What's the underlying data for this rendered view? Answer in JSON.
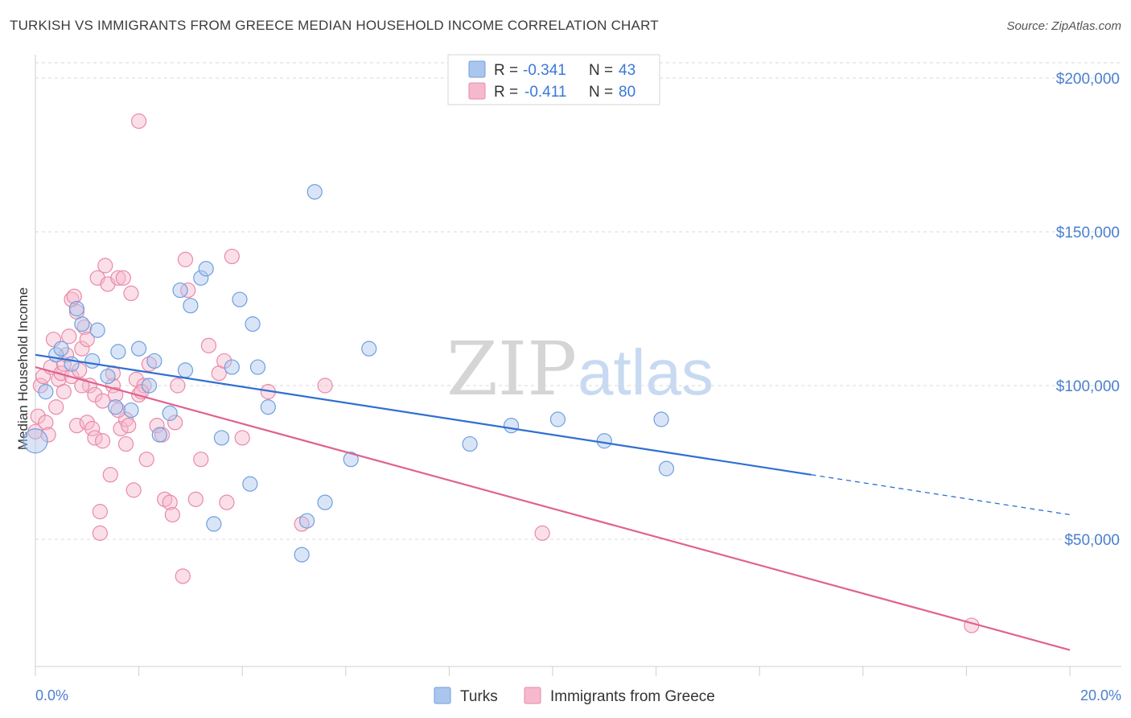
{
  "header": {
    "title": "TURKISH VS IMMIGRANTS FROM GREECE MEDIAN HOUSEHOLD INCOME CORRELATION CHART",
    "source": "Source: ZipAtlas.com"
  },
  "watermark": {
    "zip": "ZIP",
    "atlas": "atlas"
  },
  "colors": {
    "turks_fill": "#aac6ee",
    "turks_stroke": "#6f9fe0",
    "turks_line": "#2f6fd0",
    "greece_fill": "#f6b8cc",
    "greece_stroke": "#e98aa8",
    "greece_line": "#e0628f",
    "grid": "#d9d9d9",
    "tick_label": "#4a7fd0"
  },
  "legend": {
    "rows": [
      {
        "r_label": "R = ",
        "r_value": "-0.341",
        "n_label": "N = ",
        "n_value": "43"
      },
      {
        "r_label": "R = ",
        "r_value": "-0.411",
        "n_label": "N = ",
        "n_value": "80"
      }
    ]
  },
  "bottom_legend": [
    "Turks",
    "Immigrants from Greece"
  ],
  "chart_data": {
    "type": "scatter",
    "ylabel": "Median Household Income",
    "xlabel": "",
    "xlim": [
      0,
      20
    ],
    "ylim": [
      0,
      210000
    ],
    "x_tick_labels": [
      "0.0%",
      "20.0%"
    ],
    "y_ticks": [
      50000,
      100000,
      150000,
      200000
    ],
    "y_tick_labels": [
      "$50,000",
      "$100,000",
      "$150,000",
      "$200,000"
    ],
    "grid": "horizontal dashed",
    "legend_position": "top-center",
    "series": [
      {
        "name": "Turks",
        "points": [
          [
            0.0,
            82000
          ],
          [
            0.2,
            98000
          ],
          [
            0.4,
            110000
          ],
          [
            0.5,
            112000
          ],
          [
            0.7,
            107000
          ],
          [
            0.8,
            125000
          ],
          [
            0.9,
            120000
          ],
          [
            1.2,
            118000
          ],
          [
            1.1,
            108000
          ],
          [
            1.4,
            103000
          ],
          [
            1.6,
            111000
          ],
          [
            1.55,
            93000
          ],
          [
            1.85,
            92000
          ],
          [
            2.0,
            112000
          ],
          [
            2.3,
            108000
          ],
          [
            2.2,
            100000
          ],
          [
            2.4,
            84000
          ],
          [
            2.6,
            91000
          ],
          [
            2.8,
            131000
          ],
          [
            2.9,
            105000
          ],
          [
            3.0,
            126000
          ],
          [
            3.2,
            135000
          ],
          [
            3.3,
            138000
          ],
          [
            3.6,
            83000
          ],
          [
            3.8,
            106000
          ],
          [
            3.45,
            55000
          ],
          [
            3.95,
            128000
          ],
          [
            4.15,
            68000
          ],
          [
            4.2,
            120000
          ],
          [
            4.3,
            106000
          ],
          [
            4.5,
            93000
          ],
          [
            5.15,
            45000
          ],
          [
            5.25,
            56000
          ],
          [
            5.4,
            163000
          ],
          [
            5.6,
            62000
          ],
          [
            6.1,
            76000
          ],
          [
            6.45,
            112000
          ],
          [
            8.4,
            81000
          ],
          [
            9.2,
            87000
          ],
          [
            10.1,
            89000
          ],
          [
            11.0,
            82000
          ],
          [
            12.1,
            89000
          ],
          [
            12.2,
            73000
          ]
        ]
      },
      {
        "name": "Immigrants from Greece",
        "points": [
          [
            0.0,
            85000
          ],
          [
            0.05,
            90000
          ],
          [
            0.1,
            100000
          ],
          [
            0.15,
            103000
          ],
          [
            0.2,
            88000
          ],
          [
            0.3,
            106000
          ],
          [
            0.35,
            115000
          ],
          [
            0.4,
            93000
          ],
          [
            0.45,
            102000
          ],
          [
            0.5,
            104000
          ],
          [
            0.55,
            107000
          ],
          [
            0.6,
            110000
          ],
          [
            0.65,
            116000
          ],
          [
            0.7,
            128000
          ],
          [
            0.7,
            103000
          ],
          [
            0.75,
            129000
          ],
          [
            0.8,
            87000
          ],
          [
            0.8,
            124000
          ],
          [
            0.85,
            105000
          ],
          [
            0.9,
            112000
          ],
          [
            0.95,
            119000
          ],
          [
            1.0,
            115000
          ],
          [
            1.0,
            88000
          ],
          [
            1.05,
            100000
          ],
          [
            1.1,
            86000
          ],
          [
            1.15,
            97000
          ],
          [
            1.15,
            83000
          ],
          [
            1.2,
            135000
          ],
          [
            1.25,
            59000
          ],
          [
            1.25,
            52000
          ],
          [
            1.3,
            82000
          ],
          [
            1.35,
            139000
          ],
          [
            1.4,
            133000
          ],
          [
            1.45,
            71000
          ],
          [
            1.5,
            100000
          ],
          [
            1.5,
            104000
          ],
          [
            1.55,
            97000
          ],
          [
            1.6,
            135000
          ],
          [
            1.65,
            86000
          ],
          [
            1.7,
            135000
          ],
          [
            1.75,
            89000
          ],
          [
            1.75,
            81000
          ],
          [
            1.8,
            87000
          ],
          [
            1.85,
            130000
          ],
          [
            1.9,
            66000
          ],
          [
            1.95,
            102000
          ],
          [
            2.0,
            186000
          ],
          [
            2.0,
            97000
          ],
          [
            2.1,
            100000
          ],
          [
            2.15,
            76000
          ],
          [
            2.35,
            87000
          ],
          [
            2.45,
            84000
          ],
          [
            2.5,
            63000
          ],
          [
            2.6,
            62000
          ],
          [
            2.65,
            58000
          ],
          [
            2.7,
            88000
          ],
          [
            2.75,
            100000
          ],
          [
            2.85,
            38000
          ],
          [
            2.9,
            141000
          ],
          [
            2.95,
            131000
          ],
          [
            3.1,
            63000
          ],
          [
            3.2,
            76000
          ],
          [
            3.35,
            113000
          ],
          [
            3.55,
            104000
          ],
          [
            3.65,
            108000
          ],
          [
            3.7,
            62000
          ],
          [
            3.8,
            142000
          ],
          [
            4.0,
            83000
          ],
          [
            4.5,
            98000
          ],
          [
            5.15,
            55000
          ],
          [
            5.6,
            100000
          ],
          [
            9.8,
            52000
          ],
          [
            18.1,
            22000
          ],
          [
            0.25,
            84000
          ],
          [
            0.55,
            98000
          ],
          [
            1.3,
            95000
          ],
          [
            2.05,
            98000
          ],
          [
            0.9,
            100000
          ],
          [
            1.6,
            92000
          ],
          [
            2.2,
            107000
          ]
        ]
      }
    ],
    "trendlines": [
      {
        "series": "Turks",
        "start": [
          0,
          110000
        ],
        "solid_end": [
          15,
          71000
        ],
        "dashed_end": [
          20,
          58000
        ]
      },
      {
        "series": "Immigrants from Greece",
        "start": [
          0,
          106000
        ],
        "end": [
          20,
          14000
        ]
      }
    ]
  }
}
